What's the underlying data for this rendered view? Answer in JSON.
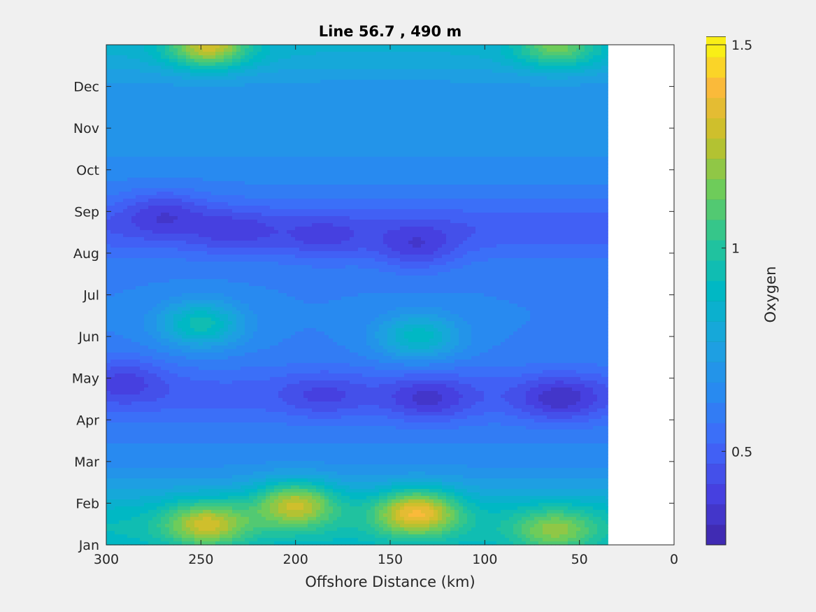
{
  "chart_data": {
    "type": "heatmap",
    "subtype": "filled-contour",
    "title": "Line 56.7 , 490 m",
    "xlabel": "Offshore Distance (km)",
    "ylabel": "",
    "xlim": [
      300,
      0
    ],
    "x_reversed": true,
    "x_ticks": [
      "300",
      "250",
      "200",
      "150",
      "100",
      "50",
      "0"
    ],
    "x_tick_values": [
      300,
      250,
      200,
      150,
      100,
      50,
      0
    ],
    "y_ticks": [
      "Jan",
      "Feb",
      "Mar",
      "Apr",
      "May",
      "Jun",
      "Jul",
      "Aug",
      "Sep",
      "Oct",
      "Nov",
      "Dec"
    ],
    "y_tick_values": [
      1,
      2,
      3,
      4,
      5,
      6,
      7,
      8,
      9,
      10,
      11,
      12
    ],
    "ylim": [
      1,
      13
    ],
    "data_x_extent_km": [
      300,
      35
    ],
    "colorbar": {
      "label": "Oxygen",
      "range": [
        0.27,
        1.5
      ],
      "ticks": [
        "0.5",
        "1",
        "1.5"
      ],
      "tick_values": [
        0.5,
        1.0,
        1.5
      ],
      "level_step": 0.05,
      "colormap": "parula"
    },
    "features": [
      {
        "x": 247,
        "y": 1.5,
        "value": 1.3
      },
      {
        "x": 200,
        "y": 2.0,
        "value": 1.28
      },
      {
        "x": 136,
        "y": 1.8,
        "value": 1.38
      },
      {
        "x": 63,
        "y": 1.35,
        "value": 1.2
      },
      {
        "x": 246,
        "y": 13.0,
        "value": 1.3
      },
      {
        "x": 62,
        "y": 13.0,
        "value": 1.15
      },
      {
        "x": 250,
        "y": 6.3,
        "value": 0.95
      },
      {
        "x": 135,
        "y": 6.0,
        "value": 0.9
      },
      {
        "x": 130,
        "y": 4.5,
        "value": 0.35
      },
      {
        "x": 185,
        "y": 4.6,
        "value": 0.4
      },
      {
        "x": 60,
        "y": 4.5,
        "value": 0.33
      },
      {
        "x": 185,
        "y": 8.3,
        "value": 0.4
      },
      {
        "x": 232,
        "y": 8.5,
        "value": 0.38
      },
      {
        "x": 270,
        "y": 9.0,
        "value": 0.38
      },
      {
        "x": 136,
        "y": 8.1,
        "value": 0.38
      },
      {
        "x": 290,
        "y": 5.0,
        "value": 0.4
      }
    ]
  },
  "colors": {
    "figure_bg": "#f0f0f0",
    "axes_bg": "#ffffff",
    "axis_color": "#262626"
  }
}
